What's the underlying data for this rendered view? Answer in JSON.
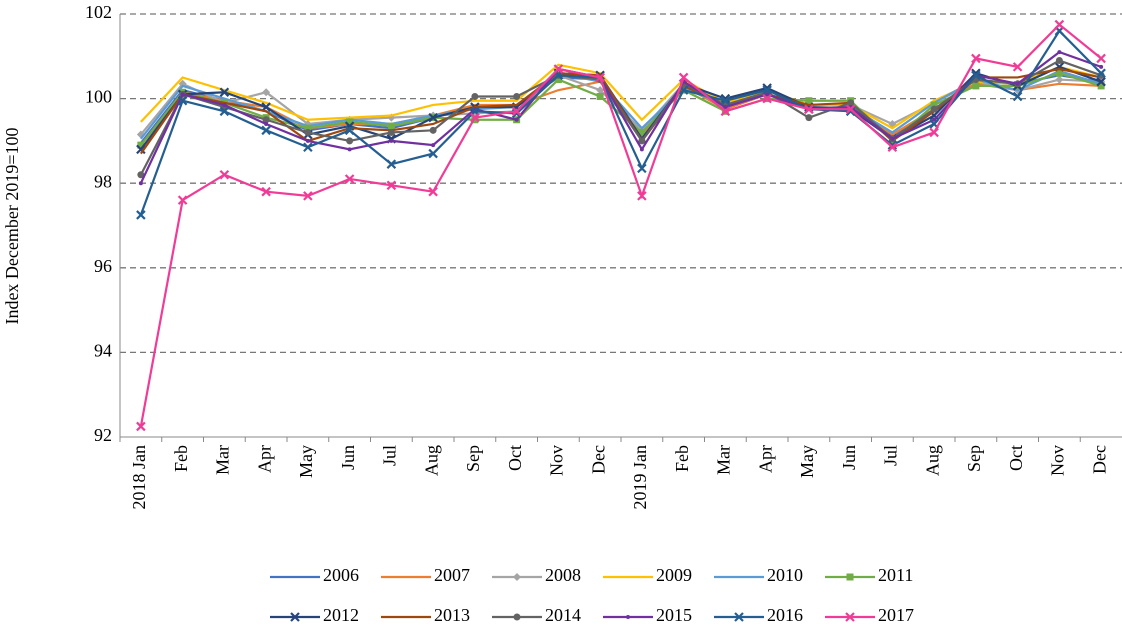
{
  "chart_data": {
    "type": "line",
    "y_label": "Index December 2019=100",
    "categories": [
      "2018 Jan",
      "Feb",
      "Mar",
      "Apr",
      "May",
      "Jun",
      "Jul",
      "Aug",
      "Sep",
      "Oct",
      "Nov",
      "Dec",
      "2019 Jan",
      "Feb",
      "Mar",
      "Apr",
      "May",
      "Jun",
      "Jul",
      "Aug",
      "Sep",
      "Oct",
      "Nov",
      "Dec"
    ],
    "ylim": [
      92,
      102
    ],
    "yticks": [
      92,
      94,
      96,
      98,
      100,
      102
    ],
    "grid": true,
    "series": [
      {
        "name": "2006",
        "color": "#4472c4",
        "marker": "none",
        "values": [
          98.95,
          100.2,
          99.95,
          99.7,
          99.25,
          99.4,
          99.3,
          99.55,
          99.8,
          99.85,
          100.5,
          100.45,
          99.15,
          100.35,
          99.9,
          100.2,
          99.8,
          99.8,
          99.1,
          99.7,
          100.4,
          100.35,
          100.55,
          100.4
        ]
      },
      {
        "name": "2007",
        "color": "#ed7d31",
        "marker": "none",
        "values": [
          98.9,
          100.15,
          99.95,
          99.8,
          99.3,
          99.4,
          99.4,
          99.6,
          99.85,
          99.85,
          100.2,
          100.4,
          99.1,
          100.3,
          99.75,
          100.1,
          99.85,
          99.85,
          99.15,
          99.75,
          100.35,
          100.2,
          100.35,
          100.3
        ]
      },
      {
        "name": "2008",
        "color": "#a5a5a5",
        "marker": "diamond",
        "values": [
          99.15,
          100.35,
          99.9,
          100.15,
          99.4,
          99.5,
          99.55,
          99.6,
          99.65,
          99.7,
          100.55,
          100.2,
          99.25,
          100.35,
          99.8,
          100.1,
          99.8,
          99.85,
          99.4,
          99.9,
          100.4,
          100.2,
          100.45,
          100.4
        ]
      },
      {
        "name": "2009",
        "color": "#ffc000",
        "marker": "none",
        "values": [
          99.45,
          100.5,
          100.2,
          99.9,
          99.5,
          99.55,
          99.6,
          99.85,
          99.95,
          99.95,
          100.8,
          100.6,
          99.5,
          100.45,
          99.9,
          100.2,
          99.85,
          99.85,
          99.3,
          99.95,
          100.4,
          100.35,
          100.75,
          100.5
        ]
      },
      {
        "name": "2010",
        "color": "#5b9bd5",
        "marker": "none",
        "values": [
          99.05,
          100.3,
          100.0,
          99.7,
          99.35,
          99.5,
          99.4,
          99.6,
          99.75,
          99.8,
          100.6,
          100.4,
          99.3,
          100.25,
          99.85,
          100.1,
          99.75,
          99.8,
          99.2,
          99.9,
          100.45,
          100.2,
          100.65,
          100.35
        ]
      },
      {
        "name": "2011",
        "color": "#70ad47",
        "marker": "square",
        "values": [
          98.9,
          100.15,
          99.9,
          99.55,
          99.3,
          99.45,
          99.35,
          99.55,
          99.5,
          99.5,
          100.45,
          100.05,
          99.2,
          100.2,
          99.7,
          100.0,
          99.95,
          99.95,
          99.0,
          99.85,
          100.3,
          100.3,
          100.6,
          100.3
        ]
      },
      {
        "name": "2012",
        "color": "#264478",
        "marker": "x",
        "values": [
          98.8,
          100.1,
          100.15,
          99.8,
          99.15,
          99.35,
          99.05,
          99.55,
          99.8,
          99.8,
          100.6,
          100.55,
          99.05,
          100.35,
          100.0,
          100.25,
          99.8,
          99.75,
          99.05,
          99.6,
          100.6,
          100.3,
          100.75,
          100.4
        ]
      },
      {
        "name": "2013",
        "color": "#9e480e",
        "marker": "none",
        "values": [
          98.7,
          100.1,
          99.9,
          99.7,
          99.0,
          99.3,
          99.25,
          99.4,
          99.8,
          99.85,
          100.6,
          100.55,
          99.0,
          100.3,
          99.85,
          100.1,
          99.85,
          99.9,
          99.0,
          99.7,
          100.5,
          100.5,
          100.7,
          100.5
        ]
      },
      {
        "name": "2014",
        "color": "#636363",
        "marker": "circle",
        "values": [
          98.2,
          100.1,
          99.8,
          99.5,
          99.2,
          99.0,
          99.2,
          99.25,
          100.05,
          100.05,
          100.55,
          100.45,
          99.0,
          100.35,
          99.85,
          100.15,
          99.55,
          99.9,
          99.05,
          99.75,
          100.45,
          100.35,
          100.9,
          100.55
        ]
      },
      {
        "name": "2015",
        "color": "#7030a0",
        "marker": "dot",
        "values": [
          98.0,
          100.1,
          99.85,
          99.4,
          99.0,
          98.8,
          99.0,
          98.9,
          99.75,
          99.5,
          100.7,
          100.5,
          98.8,
          100.4,
          99.8,
          100.1,
          99.75,
          99.8,
          99.05,
          99.5,
          100.55,
          100.35,
          101.1,
          100.75
        ]
      },
      {
        "name": "2016",
        "color": "#255e91",
        "marker": "x",
        "values": [
          97.25,
          99.95,
          99.7,
          99.25,
          98.85,
          99.25,
          98.45,
          98.7,
          99.7,
          99.65,
          100.55,
          100.5,
          98.35,
          100.2,
          99.95,
          100.2,
          99.75,
          99.7,
          98.9,
          99.4,
          100.55,
          100.05,
          101.6,
          100.6
        ]
      },
      {
        "name": "2017",
        "color": "#f03c96",
        "marker": "x",
        "values": [
          92.25,
          97.6,
          98.2,
          97.8,
          97.7,
          98.1,
          97.95,
          97.8,
          99.55,
          99.7,
          100.7,
          100.5,
          97.7,
          100.5,
          99.7,
          100.0,
          99.75,
          99.75,
          98.85,
          99.2,
          100.95,
          100.75,
          101.75,
          100.95
        ]
      }
    ]
  }
}
